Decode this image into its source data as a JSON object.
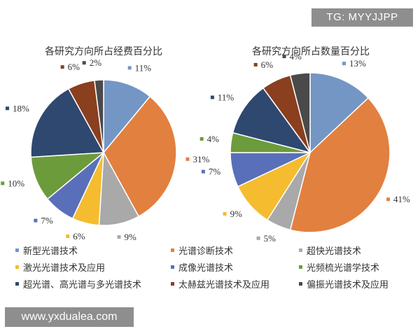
{
  "watermark_top": "TG: MYYJJPP",
  "watermark_bottom": "www.yxdualea.com",
  "legend": [
    {
      "name": "新型光谱技术",
      "color": "#7496c4"
    },
    {
      "name": "光谱诊断技术",
      "color": "#e2803f"
    },
    {
      "name": "超快光谱技术",
      "color": "#a9a9a9"
    },
    {
      "name": "激光光谱技术及应用",
      "color": "#f5bc2f"
    },
    {
      "name": "成像光谱技术",
      "color": "#5a6fb9"
    },
    {
      "name": "光频梳光谱学技术",
      "color": "#6c9b3c"
    },
    {
      "name": "超光谱、高光谱与多光谱技术",
      "color": "#2f4870"
    },
    {
      "name": "太赫兹光谱技术及应用",
      "color": "#8a3f1e"
    },
    {
      "name": "偏振光谱技术及应用",
      "color": "#4a4a4a"
    }
  ],
  "chart_data": [
    {
      "type": "pie",
      "title": "各研究方向所占经费百分比",
      "categories": [
        "新型光谱技术",
        "光谱诊断技术",
        "超快光谱技术",
        "激光光谱技术及应用",
        "成像光谱技术",
        "光频梳光谱学技术",
        "超光谱、高光谱与多光谱技术",
        "太赫兹光谱技术及应用",
        "偏振光谱技术及应用"
      ],
      "values": [
        11,
        31,
        9,
        6,
        7,
        10,
        18,
        6,
        2
      ],
      "labels": [
        "11%",
        "31%",
        "9%",
        "6%",
        "7%",
        "10%",
        "18%",
        "6%",
        "2%"
      ]
    },
    {
      "type": "pie",
      "title": "各研究方向所占数量百分比",
      "categories": [
        "新型光谱技术",
        "光谱诊断技术",
        "超快光谱技术",
        "激光光谱技术及应用",
        "成像光谱技术",
        "光频梳光谱学技术",
        "超光谱、高光谱与多光谱技术",
        "太赫兹光谱技术及应用",
        "偏振光谱技术及应用"
      ],
      "values": [
        13,
        41,
        5,
        9,
        7,
        4,
        11,
        6,
        4
      ],
      "labels": [
        "13%",
        "41%",
        "5%",
        "9%",
        "7%",
        "4%",
        "11%",
        "6%",
        "4%"
      ]
    }
  ]
}
